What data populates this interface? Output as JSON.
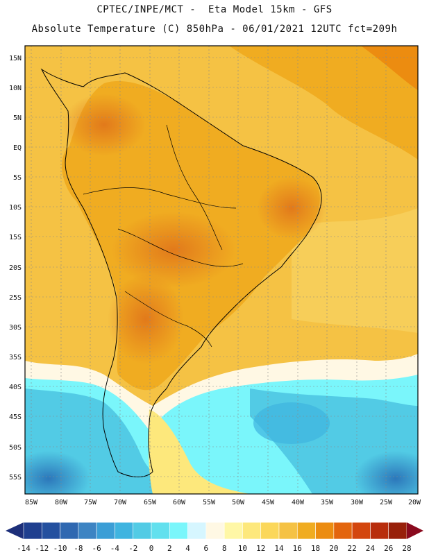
{
  "title": {
    "line1": "CPTEC/INPE/MCT -  Eta Model 15km - GFS",
    "line2": "Absolute Temperature (C) 850hPa - 06/01/2021 12UTC fct=209h"
  },
  "axes": {
    "lat_labels": [
      "15N",
      "10N",
      "5N",
      "EQ",
      "5S",
      "10S",
      "15S",
      "20S",
      "25S",
      "30S",
      "35S",
      "40S",
      "45S",
      "50S",
      "55S"
    ],
    "lon_labels": [
      "85W",
      "80W",
      "75W",
      "70W",
      "65W",
      "60W",
      "55W",
      "50W",
      "45W",
      "40W",
      "35W",
      "30W",
      "25W",
      "20W"
    ]
  },
  "colorbar": {
    "labels": [
      "-14",
      "-12",
      "-10",
      "-8",
      "-6",
      "-4",
      "-2",
      "0",
      "2",
      "4",
      "6",
      "8",
      "10",
      "12",
      "14",
      "16",
      "18",
      "20",
      "22",
      "24",
      "26",
      "28"
    ],
    "colors": [
      "#1f3f8f",
      "#24509f",
      "#2f68b1",
      "#3d84c3",
      "#3b9ed6",
      "#3fb4e0",
      "#52cbe5",
      "#62e0ee",
      "#7af6fb",
      "#d6f6ff",
      "#fff8e4",
      "#fff7a6",
      "#fde87c",
      "#fbd75a",
      "#f5c244",
      "#f0ac21",
      "#ec8c10",
      "#e3650d",
      "#d3460e",
      "#b82d0c",
      "#98200a"
    ],
    "under_color": "#1d2f7a",
    "over_color": "#8a0a1e"
  },
  "map": {
    "land_color": "#f4a824",
    "ocean_warm": "#f5c244",
    "ocean_cool": "#5ed3ec",
    "hot_core": "#e8861a",
    "cold_core": "#2b7fc0"
  }
}
